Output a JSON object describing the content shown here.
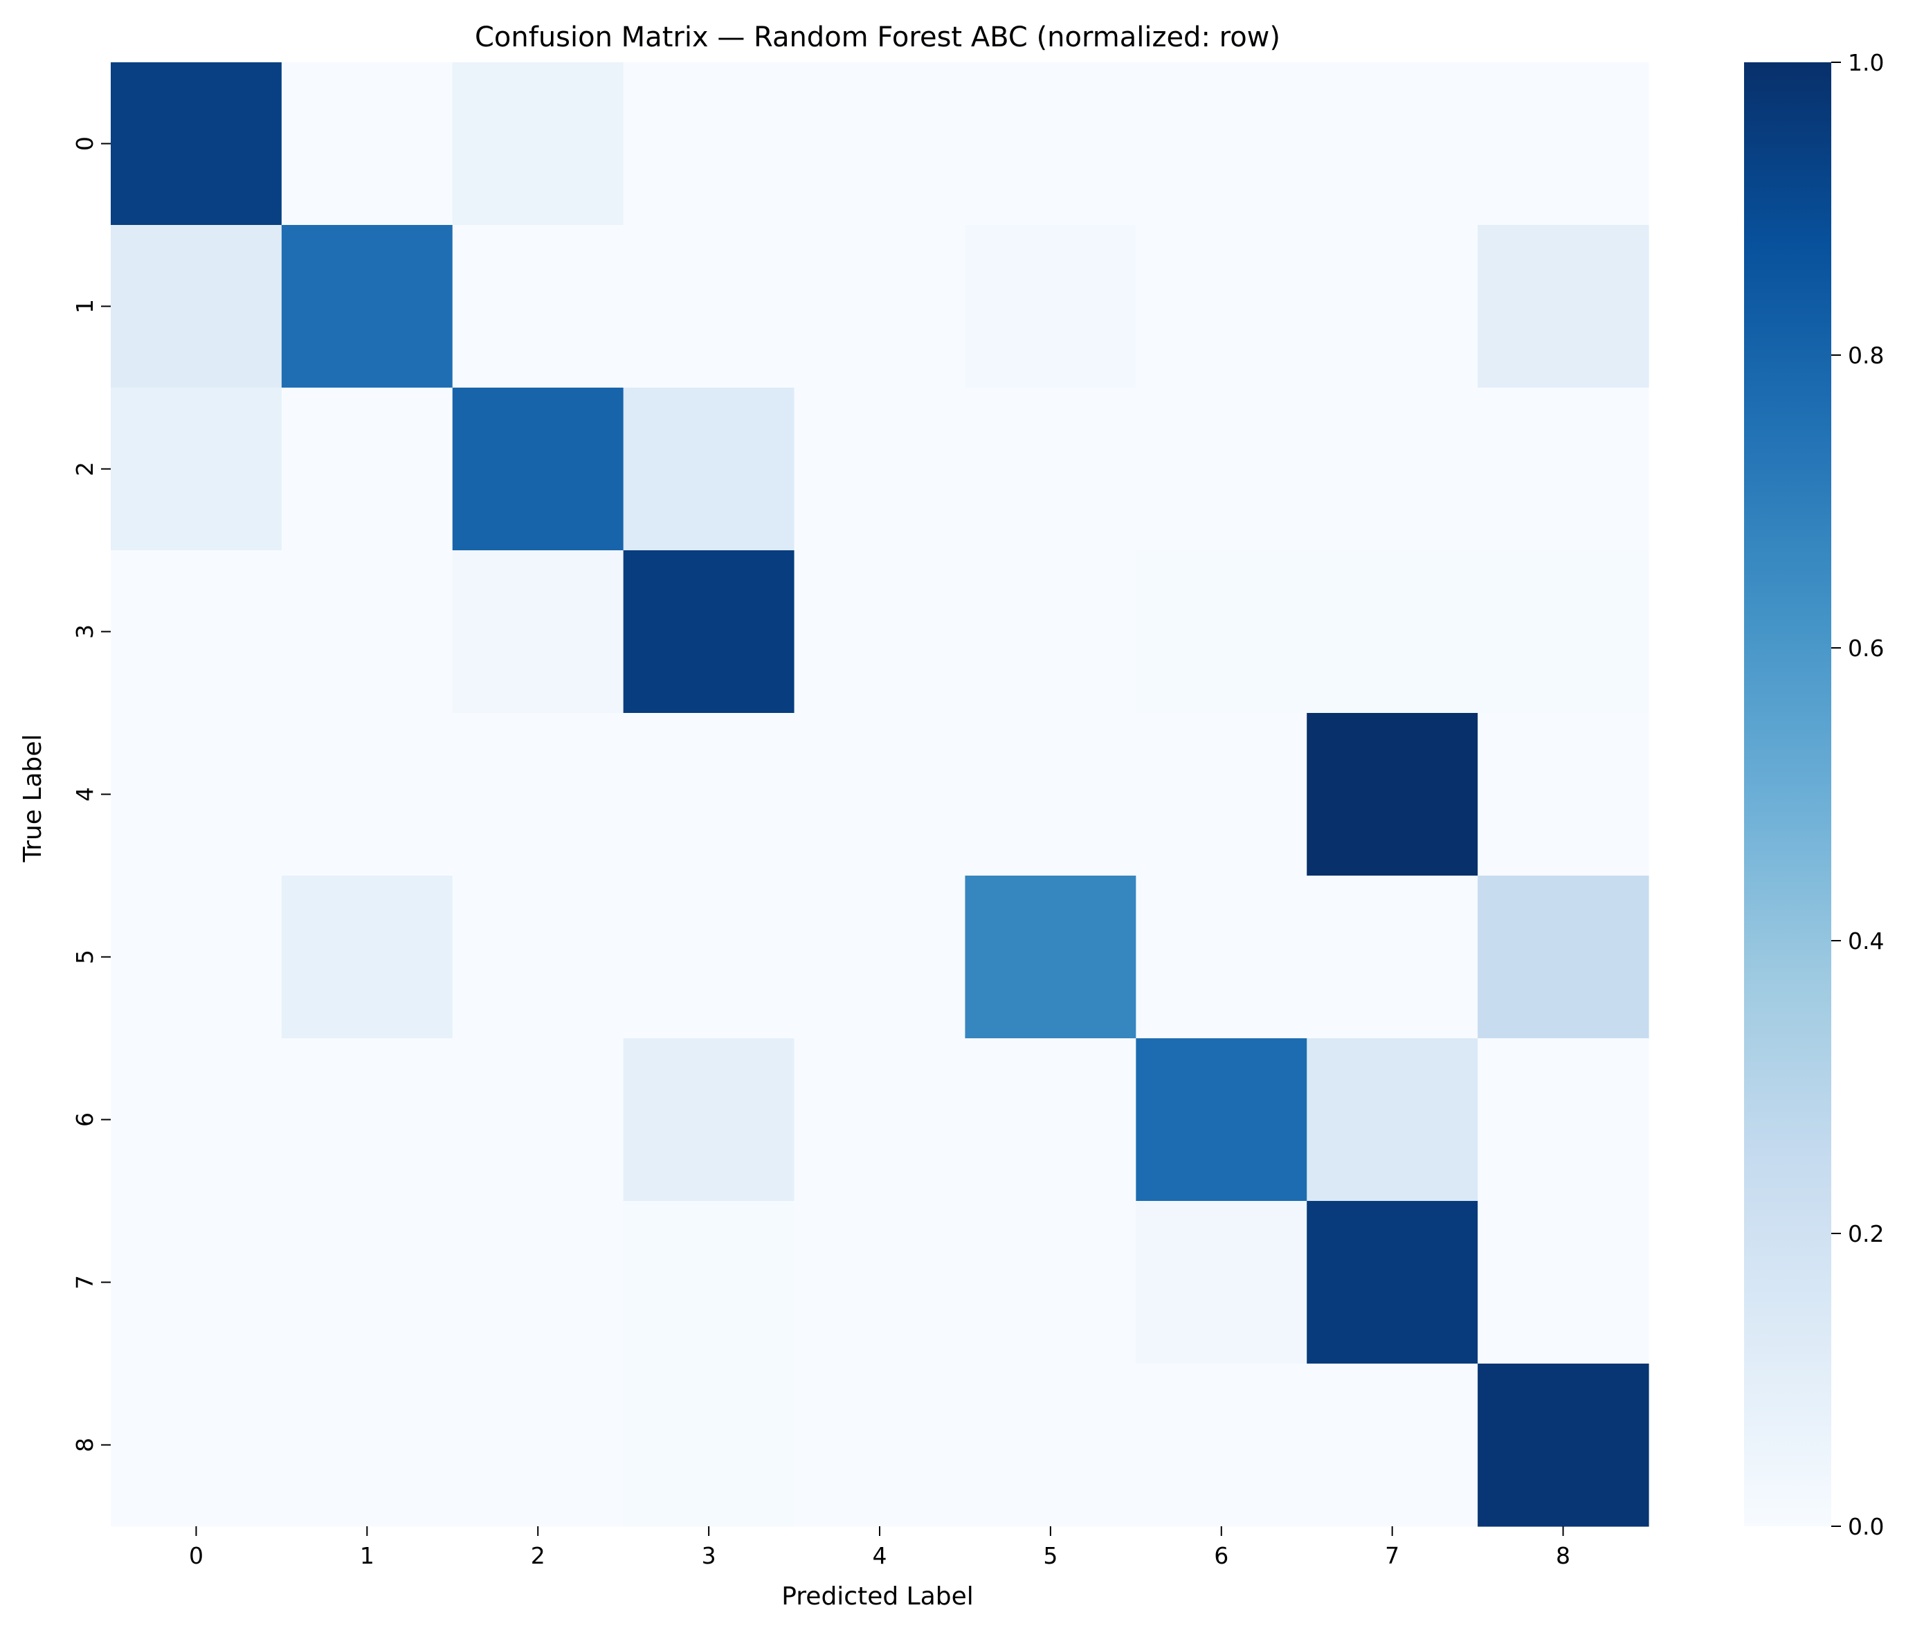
{
  "chart_data": {
    "type": "heatmap",
    "title": "Confusion Matrix — Random Forest ABC (normalized: row)",
    "xlabel": "Predicted Label",
    "ylabel": "True Label",
    "x_categories": [
      "0",
      "1",
      "2",
      "3",
      "4",
      "5",
      "6",
      "7",
      "8"
    ],
    "y_categories": [
      "0",
      "1",
      "2",
      "3",
      "4",
      "5",
      "6",
      "7",
      "8"
    ],
    "values": [
      [
        0.94,
        0.0,
        0.06,
        0.0,
        0.0,
        0.0,
        0.0,
        0.0,
        0.0
      ],
      [
        0.12,
        0.76,
        0.0,
        0.0,
        0.0,
        0.02,
        0.0,
        0.0,
        0.1
      ],
      [
        0.08,
        0.0,
        0.8,
        0.13,
        0.0,
        0.0,
        0.0,
        0.0,
        0.0
      ],
      [
        0.0,
        0.0,
        0.03,
        0.95,
        0.0,
        0.0,
        0.01,
        0.01,
        0.01
      ],
      [
        0.0,
        0.0,
        0.0,
        0.0,
        0.0,
        0.0,
        0.0,
        1.0,
        0.0
      ],
      [
        0.0,
        0.08,
        0.0,
        0.0,
        0.0,
        0.67,
        0.0,
        0.0,
        0.24
      ],
      [
        0.0,
        0.0,
        0.0,
        0.09,
        0.0,
        0.0,
        0.77,
        0.14,
        0.0
      ],
      [
        0.0,
        0.0,
        0.0,
        0.01,
        0.0,
        0.0,
        0.03,
        0.96,
        0.0
      ],
      [
        0.0,
        0.0,
        0.0,
        0.01,
        0.0,
        0.0,
        0.0,
        0.0,
        0.98
      ]
    ],
    "colormap": "Blues",
    "colorbar": {
      "vmin": 0.0,
      "vmax": 1.0,
      "ticks": [
        0.0,
        0.2,
        0.4,
        0.6,
        0.8,
        1.0
      ],
      "tick_labels": [
        "0.0",
        "0.2",
        "0.4",
        "0.6",
        "0.8",
        "1.0"
      ]
    },
    "grid": false
  }
}
